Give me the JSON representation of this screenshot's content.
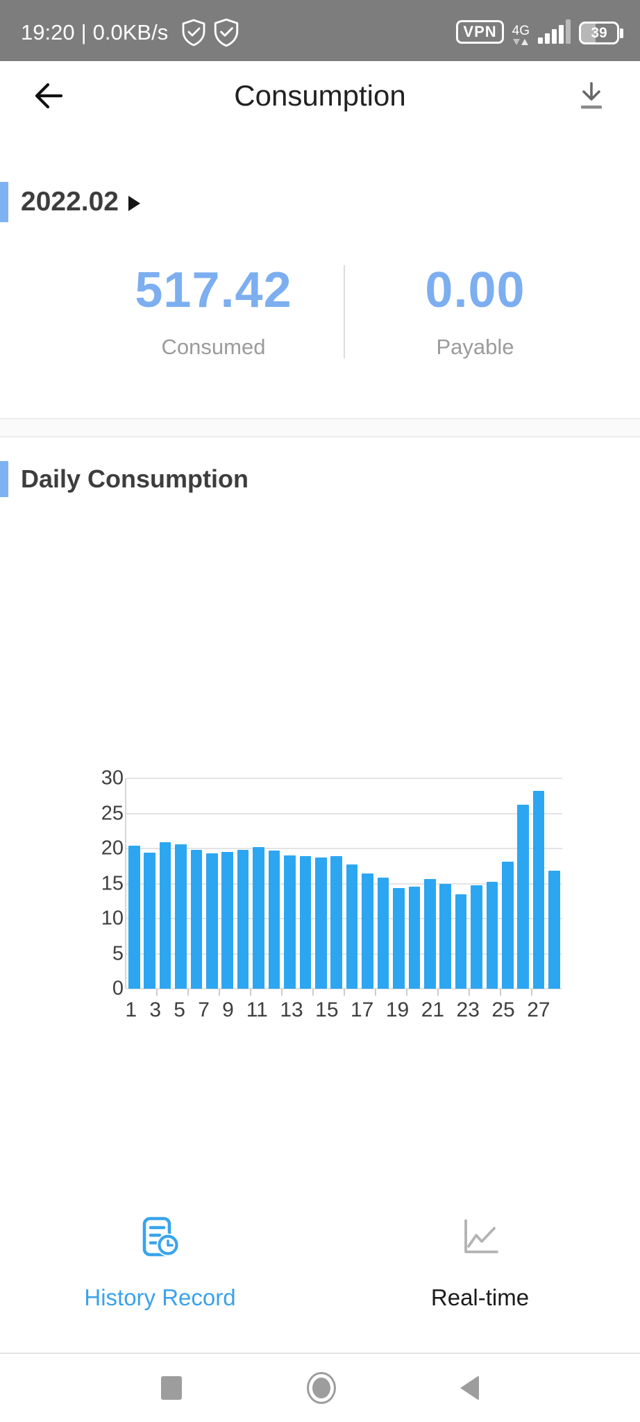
{
  "status_bar": {
    "time": "19:20",
    "divider": "|",
    "net_speed": "0.0KB/s",
    "vpn_label": "VPN",
    "network_type": "4G",
    "battery_level": "39"
  },
  "header": {
    "title": "Consumption"
  },
  "month_selector": {
    "label": "2022.02"
  },
  "summary": {
    "consumed_value": "517.42",
    "consumed_label": "Consumed",
    "payable_value": "0.00",
    "payable_label": "Payable"
  },
  "daily_section": {
    "title": "Daily Consumption"
  },
  "chart_data": {
    "type": "bar",
    "title": "Daily Consumption",
    "categories": [
      1,
      2,
      3,
      4,
      5,
      6,
      7,
      8,
      9,
      10,
      11,
      12,
      13,
      14,
      15,
      16,
      17,
      18,
      19,
      20,
      21,
      22,
      23,
      24,
      25,
      26,
      27,
      28
    ],
    "values": [
      20.4,
      19.4,
      20.9,
      20.6,
      19.8,
      19.3,
      19.5,
      19.8,
      20.2,
      19.7,
      19.0,
      18.9,
      18.7,
      18.9,
      17.7,
      16.4,
      15.8,
      14.4,
      14.6,
      15.6,
      15.0,
      13.5,
      14.8,
      15.2,
      18.1,
      26.2,
      28.2,
      16.8
    ],
    "xlabel": "",
    "ylabel": "",
    "ylim": [
      0,
      30
    ],
    "y_ticks": [
      0,
      5,
      10,
      15,
      20,
      25,
      30
    ],
    "x_tick_labels": [
      "1",
      "3",
      "5",
      "7",
      "9",
      "11",
      "13",
      "15",
      "17",
      "19",
      "21",
      "23",
      "25",
      "27"
    ],
    "grid": true,
    "legend_position": "none",
    "bar_color": "#2CA6F1"
  },
  "actions": {
    "history": {
      "label": "History Record"
    },
    "realtime": {
      "label": "Real-time"
    }
  },
  "colors": {
    "status_bar_bg": "#7D7D7D",
    "accent_bar_blue": "#7FB2F2",
    "stat_value_blue": "#7CAEF0",
    "bar_blue": "#2CA6F1",
    "link_blue": "#3AA2EA",
    "muted_gray": "#9B9B9B"
  }
}
